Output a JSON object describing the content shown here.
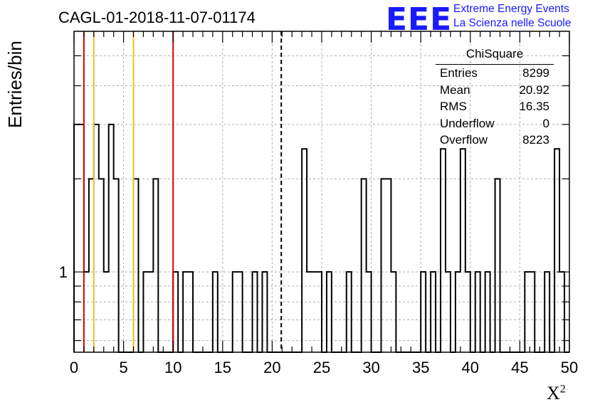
{
  "header": {
    "title": "CAGL-01-2018-11-07-01174",
    "logo_text": "EEE",
    "logo_line1": "Extreme Energy Events",
    "logo_line2": "La Scienza nelle Scuole"
  },
  "stats_box": {
    "title": "ChiSquare",
    "rows": [
      {
        "label": "Entries",
        "value": "8299"
      },
      {
        "label": "Mean",
        "value": "20.92"
      },
      {
        "label": "RMS",
        "value": "16.35"
      },
      {
        "label": "Underflow",
        "value": "0"
      },
      {
        "label": "Overflow",
        "value": "8223"
      }
    ]
  },
  "axes": {
    "ylabel": "Entries/bin",
    "xlabel": "X",
    "xlabel_sup": "2"
  },
  "colors": {
    "red_line": "#e00000",
    "yellow_line": "#f0c020",
    "grid": "#b0b0b0",
    "logo": "#1a1aff"
  },
  "chart_data": {
    "type": "histogram",
    "xlim": [
      0,
      50
    ],
    "bin_width": 0.5,
    "y_scale": "log",
    "ylim": [
      0.55,
      6
    ],
    "y_tick_labels": [
      "1"
    ],
    "x_ticks": [
      0,
      5,
      10,
      15,
      20,
      25,
      30,
      35,
      40,
      45,
      50
    ],
    "x_tick_labels": [
      "0",
      "5",
      "10",
      "15",
      "20",
      "25",
      "30",
      "35",
      "40",
      "45",
      "50"
    ],
    "grid": true,
    "bins": [
      {
        "x": 0.0,
        "y": 3
      },
      {
        "x": 0.5,
        "y": 3
      },
      {
        "x": 1.0,
        "y": 1
      },
      {
        "x": 1.5,
        "y": 2
      },
      {
        "x": 2.0,
        "y": 3
      },
      {
        "x": 2.5,
        "y": 2
      },
      {
        "x": 3.0,
        "y": 1
      },
      {
        "x": 3.5,
        "y": 3
      },
      {
        "x": 4.0,
        "y": 2
      },
      {
        "x": 6.0,
        "y": 2
      },
      {
        "x": 7.0,
        "y": 1
      },
      {
        "x": 7.5,
        "y": 1
      },
      {
        "x": 8.0,
        "y": 2
      },
      {
        "x": 10.0,
        "y": 1
      },
      {
        "x": 11.0,
        "y": 1
      },
      {
        "x": 11.5,
        "y": 1
      },
      {
        "x": 14.0,
        "y": 1
      },
      {
        "x": 16.0,
        "y": 1
      },
      {
        "x": 16.5,
        "y": 1
      },
      {
        "x": 18.0,
        "y": 1
      },
      {
        "x": 19.0,
        "y": 1
      },
      {
        "x": 23.0,
        "y": 2.5
      },
      {
        "x": 23.5,
        "y": 1
      },
      {
        "x": 24.0,
        "y": 1
      },
      {
        "x": 24.5,
        "y": 1
      },
      {
        "x": 25.5,
        "y": 1
      },
      {
        "x": 27.5,
        "y": 1
      },
      {
        "x": 29.0,
        "y": 2
      },
      {
        "x": 29.5,
        "y": 1
      },
      {
        "x": 31.0,
        "y": 2
      },
      {
        "x": 31.5,
        "y": 2
      },
      {
        "x": 32.0,
        "y": 1
      },
      {
        "x": 35.0,
        "y": 1
      },
      {
        "x": 36.0,
        "y": 1
      },
      {
        "x": 37.0,
        "y": 2.5
      },
      {
        "x": 37.5,
        "y": 1
      },
      {
        "x": 38.5,
        "y": 1
      },
      {
        "x": 39.0,
        "y": 2.5
      },
      {
        "x": 39.5,
        "y": 1
      },
      {
        "x": 40.5,
        "y": 1
      },
      {
        "x": 41.5,
        "y": 1
      },
      {
        "x": 42.5,
        "y": 2
      },
      {
        "x": 45.5,
        "y": 1
      },
      {
        "x": 46.0,
        "y": 1
      },
      {
        "x": 47.5,
        "y": 1
      },
      {
        "x": 48.5,
        "y": 2.5
      },
      {
        "x": 49.0,
        "y": 1
      }
    ],
    "vertical_lines": [
      {
        "x": 1,
        "color": "#e00000",
        "style": "solid"
      },
      {
        "x": 2,
        "color": "#f0c020",
        "style": "solid"
      },
      {
        "x": 6,
        "color": "#f0c020",
        "style": "solid"
      },
      {
        "x": 10,
        "color": "#e00000",
        "style": "solid"
      },
      {
        "x": 20.92,
        "color": "#000000",
        "style": "dashed"
      }
    ]
  }
}
